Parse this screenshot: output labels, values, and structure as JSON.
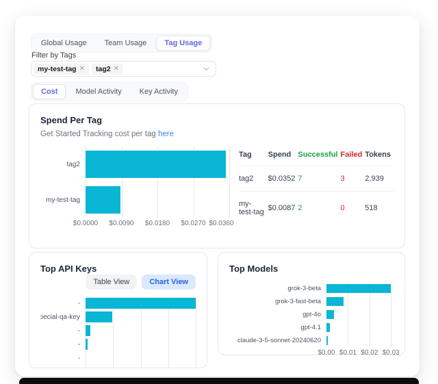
{
  "tabs_primary": {
    "items": [
      "Global Usage",
      "Team Usage",
      "Tag Usage"
    ],
    "active": "Tag Usage"
  },
  "filter": {
    "label": "Filter by Tags",
    "selected_tags": [
      "my-test-tag",
      "tag2"
    ],
    "remove_icon": "✕"
  },
  "tabs_secondary": {
    "items": [
      "Cost",
      "Model Activity",
      "Key Activity"
    ],
    "active": "Cost"
  },
  "spend_card": {
    "title": "Spend Per Tag",
    "subtitle_text": "Get Started Tracking cost per tag",
    "subtitle_link": "here",
    "table": {
      "headers": [
        "Tag",
        "Spend",
        "Successful",
        "Failed",
        "Tokens"
      ],
      "rows": [
        [
          "tag2",
          "$0.0352",
          "7",
          "3",
          "2,939"
        ],
        [
          "my-test-tag",
          "$0.0087",
          "2",
          "0",
          "518"
        ]
      ]
    }
  },
  "top_api_keys_card": {
    "title": "Top API Keys",
    "table_view_label": "Table View",
    "chart_view_label": "Chart View",
    "active_view": "Chart View"
  },
  "top_models_card": {
    "title": "Top Models"
  },
  "colors": {
    "bar_cyan": "#0ab6d5",
    "active_tab_text": "#6366f1",
    "link_blue": "#3b82f6",
    "success_green": "#16a34a",
    "failed_red": "#dc2626",
    "chart_view_bg": "#dbe9fe",
    "chart_view_text": "#2563eb",
    "bottom_bar": "#0d0d10"
  },
  "chart_data": [
    {
      "id": "spend_per_tag",
      "type": "bar",
      "orientation": "horizontal",
      "title": "Spend Per Tag",
      "categories": [
        "tag2",
        "my-test-tag"
      ],
      "values": [
        0.0352,
        0.0087
      ],
      "value_unit": "USD",
      "xlim": [
        0,
        0.036
      ],
      "tick_values": [
        0,
        0.009,
        0.018,
        0.027,
        0.036
      ],
      "tick_labels": [
        "$0.0000",
        "$0.0090",
        "$0.0180",
        "$0.0270",
        "$0.0360"
      ],
      "grid": true,
      "legend": false,
      "bar_color": "#0ab6d5"
    },
    {
      "id": "top_api_keys",
      "type": "bar",
      "orientation": "horizontal",
      "title": "Top API Keys",
      "categories": [
        "-",
        "pecial-qa-key",
        "-",
        "-",
        "-"
      ],
      "values": [
        1,
        0.24,
        0.045,
        0.02,
        0
      ],
      "values_note": "x-axis tick labels are clipped out of view; values are estimated fractions of the longest bar",
      "xlim": [
        0,
        1
      ],
      "tick_values": [
        0,
        0.25,
        0.5,
        0.75,
        1
      ],
      "tick_labels": [],
      "grid": true,
      "legend": false,
      "bar_color": "#0ab6d5"
    },
    {
      "id": "top_models",
      "type": "bar",
      "orientation": "horizontal",
      "title": "Top Models",
      "categories": [
        "grok-3-beta",
        "grok-3-fast-beta",
        "gpt-4o",
        "gpt-4.1",
        "claude-3-5-sonnet-20240620"
      ],
      "values": [
        0.03,
        0.008,
        0.0035,
        0.0015,
        0.0006
      ],
      "value_unit": "USD",
      "xlim": [
        0,
        0.0312
      ],
      "tick_values": [
        0,
        0.01,
        0.02,
        0.03
      ],
      "tick_labels": [
        "$0.00",
        "$0.01",
        "$0.02",
        "$0.03"
      ],
      "grid": true,
      "legend": false,
      "bar_color": "#0ab6d5"
    }
  ]
}
